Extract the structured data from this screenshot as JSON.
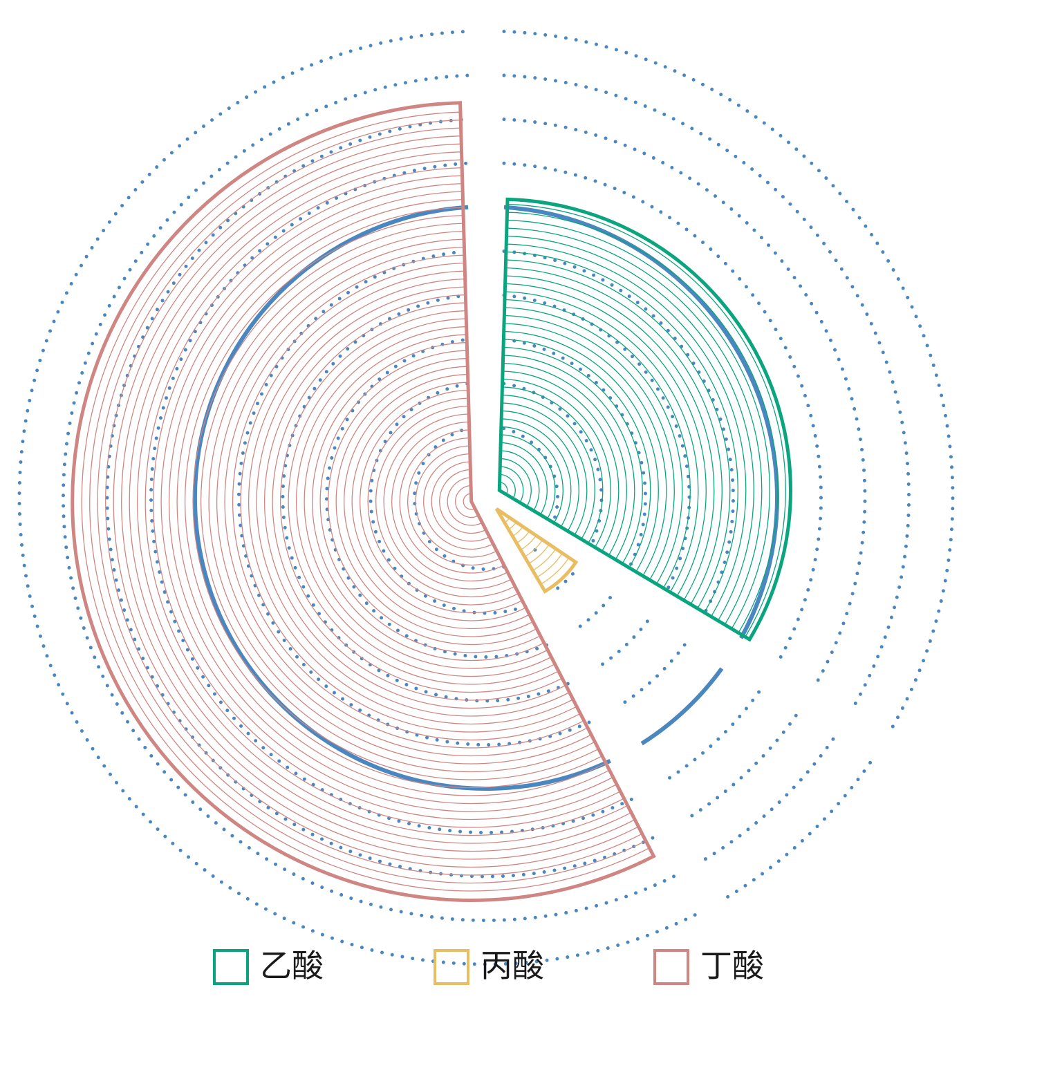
{
  "chart_data": {
    "type": "pie",
    "subtype": "rose",
    "categories": [
      "乙酸",
      "丙酸",
      "丁酸"
    ],
    "values": [
      34,
      8,
      58
    ],
    "radii": [
      73,
      24,
      100
    ],
    "title": "",
    "legend": {
      "placement": "bottom",
      "entries": [
        {
          "label": "乙酸",
          "color": "#0aa57e"
        },
        {
          "label": "丙酸",
          "color": "#e9bd62"
        },
        {
          "label": "丁酸",
          "color": "#cf8682"
        }
      ]
    },
    "reference_rings": {
      "count": 10,
      "solid_ring": 5,
      "color": "#4a86bf"
    },
    "colors": [
      "#0aa57e",
      "#e9bd62",
      "#cf8682"
    ]
  }
}
